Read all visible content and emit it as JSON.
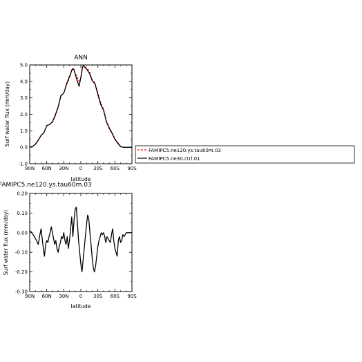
{
  "chart_data": [
    {
      "type": "line",
      "title": "ANN",
      "xlabel": "latitude",
      "ylabel": "Surf water flux (mm/day)",
      "xlim": [
        90,
        -90
      ],
      "ylim": [
        -1.0,
        5.0
      ],
      "x_ticks": [
        90,
        60,
        30,
        0,
        -30,
        -60,
        -90
      ],
      "x_tick_labels": [
        "90N",
        "60N",
        "30N",
        "0",
        "30S",
        "60S",
        "90S"
      ],
      "y_ticks": [
        -1.0,
        0.0,
        1.0,
        2.0,
        3.0,
        4.0,
        5.0
      ],
      "y_tick_labels": [
        "-1.0",
        "0.0",
        "1.0",
        "2.0",
        "3.0",
        "4.0",
        "5.0"
      ],
      "legend_position": "right",
      "series": [
        {
          "name": "FAMIPC5.ne120.ys.tau60m.03",
          "color": "#ff0000",
          "dash": "dashed",
          "x": [
            90,
            85,
            80,
            75,
            70,
            65,
            60,
            55,
            50,
            45,
            40,
            35,
            30,
            25,
            20,
            15,
            12,
            10,
            7,
            5,
            3,
            0,
            -3,
            -5,
            -7,
            -10,
            -12,
            -15,
            -20,
            -25,
            -30,
            -35,
            -40,
            -45,
            -50,
            -55,
            -60,
            -65,
            -70,
            -75,
            -80,
            -85,
            -90
          ],
          "values": [
            0.02,
            0.05,
            0.2,
            0.45,
            0.7,
            0.9,
            1.3,
            1.4,
            1.5,
            1.9,
            2.4,
            3.1,
            3.3,
            3.8,
            4.2,
            4.8,
            4.75,
            4.5,
            4.3,
            4.15,
            4.0,
            4.2,
            4.8,
            5.0,
            4.9,
            4.8,
            4.75,
            4.6,
            4.1,
            3.9,
            3.3,
            2.7,
            2.3,
            1.6,
            1.2,
            0.9,
            0.5,
            0.3,
            0.05,
            0.0,
            0.0,
            0.0,
            0.0
          ]
        },
        {
          "name": "FAMIPC5.ne30.ctrl.01",
          "color": "#000000",
          "dash": "solid",
          "x": [
            90,
            85,
            80,
            75,
            70,
            65,
            60,
            55,
            50,
            45,
            40,
            35,
            30,
            25,
            20,
            15,
            12,
            10,
            7,
            5,
            3,
            0,
            -3,
            -5,
            -7,
            -10,
            -12,
            -15,
            -20,
            -25,
            -30,
            -35,
            -40,
            -45,
            -50,
            -55,
            -60,
            -65,
            -70,
            -75,
            -80,
            -85,
            -90
          ],
          "values": [
            0.0,
            0.05,
            0.18,
            0.42,
            0.72,
            0.88,
            1.32,
            1.38,
            1.55,
            1.95,
            2.45,
            3.15,
            3.28,
            3.85,
            4.3,
            4.75,
            4.7,
            4.45,
            4.1,
            3.9,
            3.7,
            4.25,
            4.9,
            4.95,
            4.85,
            4.75,
            4.65,
            4.5,
            4.05,
            3.85,
            3.2,
            2.6,
            2.25,
            1.55,
            1.15,
            0.85,
            0.48,
            0.25,
            0.03,
            0.0,
            0.0,
            0.0,
            0.0
          ]
        }
      ]
    },
    {
      "type": "line",
      "title": "FAMIPC5.ne120.ys.tau60m.03",
      "xlabel": "latitude",
      "ylabel": "Surf water flux (mm/day)",
      "xlim": [
        90,
        -90
      ],
      "ylim": [
        -0.3,
        0.2
      ],
      "x_ticks": [
        90,
        60,
        30,
        0,
        -30,
        -60,
        -90
      ],
      "x_tick_labels": [
        "90N",
        "60N",
        "30N",
        "0",
        "30S",
        "60S",
        "90S"
      ],
      "y_ticks": [
        -0.3,
        -0.2,
        -0.1,
        0.0,
        0.1,
        0.2
      ],
      "y_tick_labels": [
        "-0.30",
        "-0.20",
        "-0.10",
        "0.00",
        "0.10",
        "0.20"
      ],
      "series": [
        {
          "color": "#000000",
          "dash": "solid",
          "x": [
            90,
            86,
            82,
            78,
            75,
            72,
            70,
            68,
            66,
            64,
            62,
            60,
            58,
            56,
            54,
            52,
            50,
            48,
            46,
            44,
            42,
            40,
            38,
            36,
            34,
            32,
            30,
            28,
            26,
            24,
            22,
            20,
            18,
            16,
            14,
            12,
            10,
            8,
            6,
            4,
            2,
            0,
            -2,
            -4,
            -6,
            -8,
            -10,
            -12,
            -14,
            -16,
            -18,
            -20,
            -22,
            -24,
            -26,
            -28,
            -30,
            -32,
            -34,
            -36,
            -38,
            -40,
            -42,
            -44,
            -46,
            -48,
            -50,
            -52,
            -54,
            -56,
            -58,
            -60,
            -62,
            -64,
            -66,
            -68,
            -70,
            -72,
            -74,
            -76,
            -78,
            -80,
            -84,
            -88,
            -90
          ],
          "values": [
            0.01,
            0.0,
            -0.02,
            -0.04,
            -0.06,
            -0.01,
            0.02,
            -0.03,
            -0.08,
            -0.12,
            -0.06,
            -0.04,
            -0.05,
            -0.02,
            0.0,
            0.03,
            0.0,
            -0.03,
            -0.06,
            -0.04,
            -0.08,
            -0.1,
            -0.07,
            -0.05,
            -0.02,
            -0.03,
            0.0,
            -0.04,
            -0.06,
            -0.02,
            -0.08,
            -0.04,
            0.02,
            0.08,
            -0.02,
            0.06,
            0.12,
            0.13,
            0.05,
            -0.04,
            -0.1,
            -0.16,
            -0.2,
            -0.14,
            -0.08,
            -0.02,
            0.04,
            0.09,
            0.07,
            0.0,
            -0.06,
            -0.13,
            -0.18,
            -0.2,
            -0.17,
            -0.12,
            -0.07,
            -0.04,
            -0.02,
            0.0,
            -0.01,
            0.0,
            -0.02,
            -0.05,
            -0.02,
            -0.03,
            -0.04,
            -0.05,
            -0.01,
            0.02,
            -0.04,
            -0.08,
            -0.1,
            -0.12,
            -0.04,
            -0.02,
            -0.05,
            -0.04,
            -0.01,
            -0.02,
            -0.01,
            0.0,
            0.0,
            0.0,
            0.0
          ]
        }
      ]
    }
  ]
}
